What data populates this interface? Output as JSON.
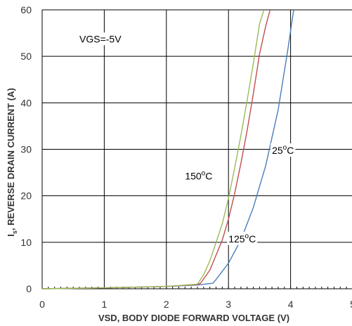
{
  "chart_data": {
    "type": "line",
    "xlabel": "VSD, BODY DIODE FORWARD VOLTAGE (V)",
    "ylabel_main": "I",
    "ylabel_sub": "s",
    "ylabel_rest": ", REVERSE DRAIN CURRENT (A)",
    "xlim": [
      0,
      5
    ],
    "ylim": [
      0,
      60
    ],
    "x_ticks": [
      "0",
      "1",
      "2",
      "3",
      "4",
      "5"
    ],
    "y_ticks": [
      "0",
      "10",
      "20",
      "30",
      "40",
      "50",
      "60"
    ],
    "x_tick_values": [
      0,
      1,
      2,
      3,
      4,
      5
    ],
    "y_tick_values": [
      0,
      10,
      20,
      30,
      40,
      50,
      60
    ],
    "grid": true,
    "series": [
      {
        "name": "25°C",
        "color": "#4a7ebb",
        "x": [
          0,
          1,
          2,
          2.5,
          2.75,
          2.8,
          3.0,
          3.2,
          3.4,
          3.6,
          3.8,
          3.95,
          4.05
        ],
        "y": [
          0,
          0.2,
          0.5,
          0.8,
          1.2,
          2.0,
          5.5,
          10.5,
          17.5,
          26.5,
          38.5,
          51,
          60
        ]
      },
      {
        "name": "125°C",
        "color": "#c0504d",
        "x": [
          0,
          1,
          2,
          2.5,
          2.55,
          2.7,
          2.9,
          3.0,
          3.1,
          3.2,
          3.3,
          3.4,
          3.5,
          3.6,
          3.67
        ],
        "y": [
          0,
          0.2,
          0.5,
          0.9,
          1.2,
          4.0,
          10.5,
          15.0,
          20.5,
          27.0,
          34.0,
          42.0,
          50.5,
          56.5,
          60
        ]
      },
      {
        "name": "150°C",
        "color": "#9bbb59",
        "x": [
          0,
          1,
          2,
          2.5,
          2.6,
          2.7,
          2.9,
          3.0,
          3.1,
          3.2,
          3.3,
          3.4,
          3.5,
          3.57
        ],
        "y": [
          0,
          0.2,
          0.5,
          1.0,
          3.0,
          6.0,
          14.0,
          19.5,
          26.0,
          33.0,
          40.5,
          48.5,
          57.0,
          60
        ]
      }
    ],
    "annotations": [
      {
        "id": "vgs",
        "text": "VGS=-5V",
        "x": 0.6,
        "y": 53
      },
      {
        "id": "t150",
        "base": "150",
        "sup": "o",
        "unit": "C",
        "x": 2.3,
        "y": 23.5
      },
      {
        "id": "t125",
        "base": "125",
        "sup": "o",
        "unit": "C",
        "x": 3.0,
        "y": 10.0
      },
      {
        "id": "t25",
        "base": "25",
        "sup": "o",
        "unit": "C",
        "x": 3.7,
        "y": 29.0
      }
    ]
  }
}
